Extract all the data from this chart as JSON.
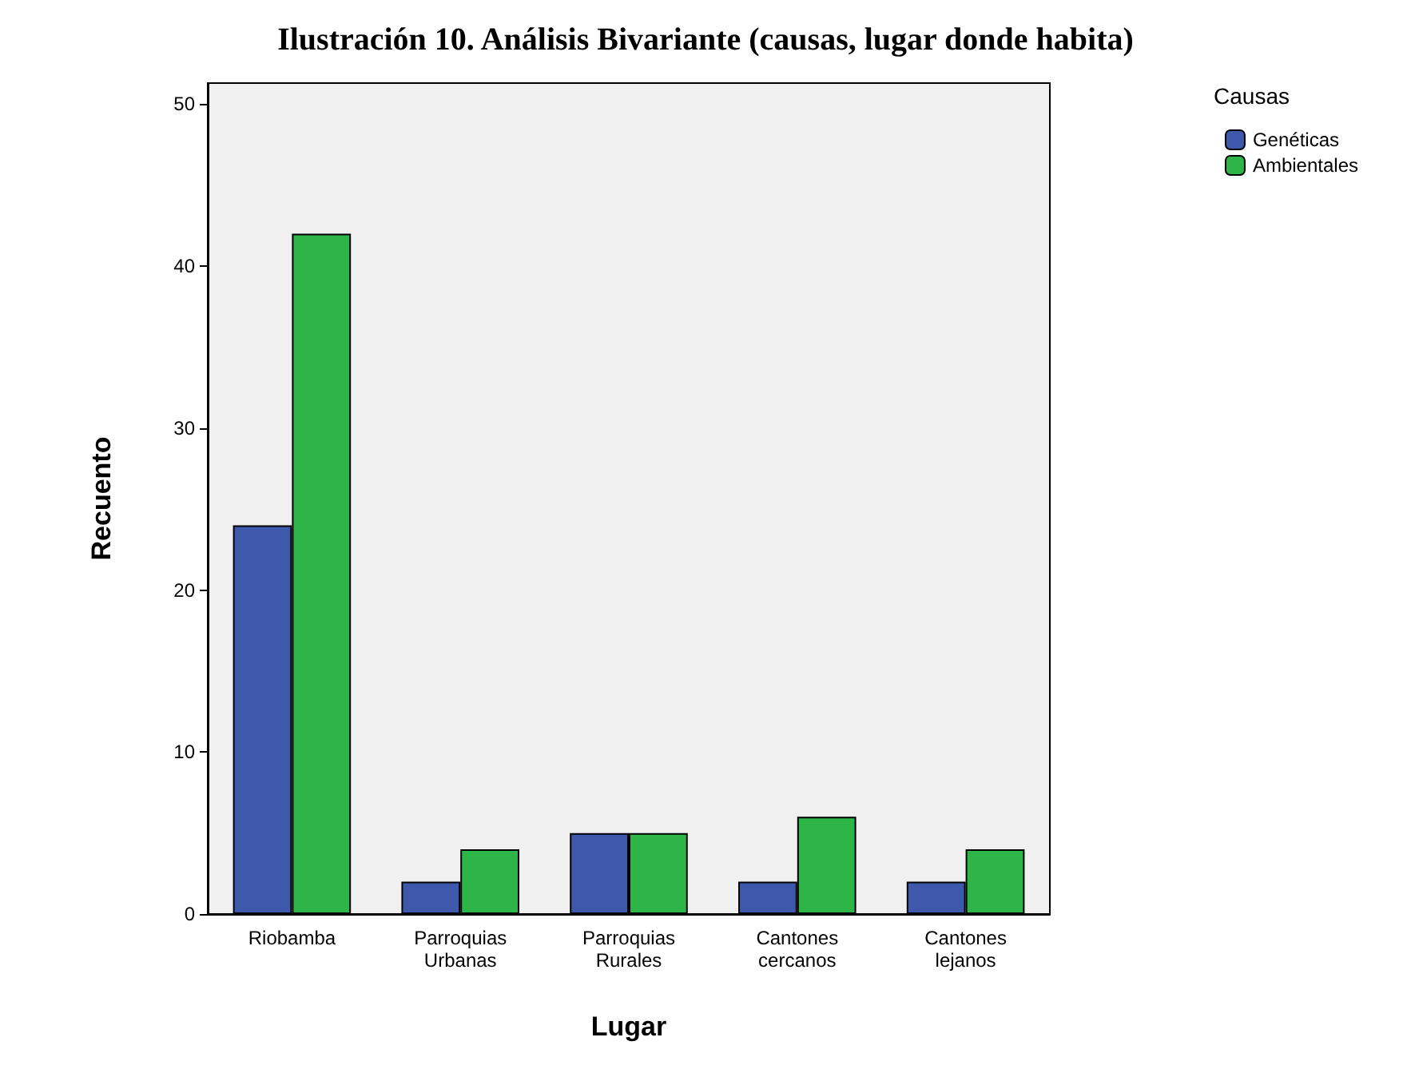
{
  "chart_data": {
    "type": "bar",
    "title": "Ilustración 10. Análisis Bivariante (causas, lugar donde habita)",
    "xlabel": "Lugar",
    "ylabel": "Recuento",
    "legend_title": "Causas",
    "categories": [
      "Riobamba",
      "Parroquias Urbanas",
      "Parroquias Rurales",
      "Cantones cercanos",
      "Cantones lejanos"
    ],
    "series": [
      {
        "name": "Genéticas",
        "color": "#3e58ac",
        "values": [
          24,
          2,
          5,
          2,
          2
        ]
      },
      {
        "name": "Ambientales",
        "color": "#2eb548",
        "values": [
          42,
          4,
          5,
          6,
          4
        ]
      }
    ],
    "ylim": [
      0,
      51.3
    ],
    "yticks": [
      0,
      10,
      20,
      30,
      40,
      50
    ],
    "grid": false,
    "legend": "top right"
  }
}
